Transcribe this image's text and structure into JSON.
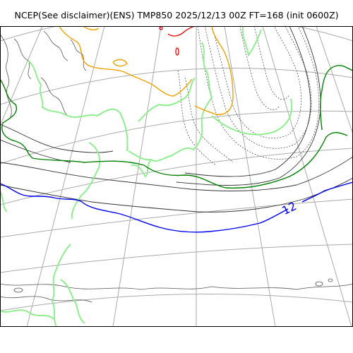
{
  "title": "NCEP(See disclaimer)(ENS) TMP850 2025/12/13 00Z FT=168 (init 0600Z)",
  "contour_label": "12",
  "colors": {
    "frame": "#000000",
    "graticule": "#aaaaaa",
    "coast_fine": "#555555",
    "isotherm_dashed": "#555555",
    "isotherm_solid": "#333333",
    "land_green": "#90ee90",
    "contour_orange": "#f0a000",
    "contour_red": "#ee0000",
    "contour_dark_green": "#008000",
    "contour_blue": "#0000ee"
  }
}
